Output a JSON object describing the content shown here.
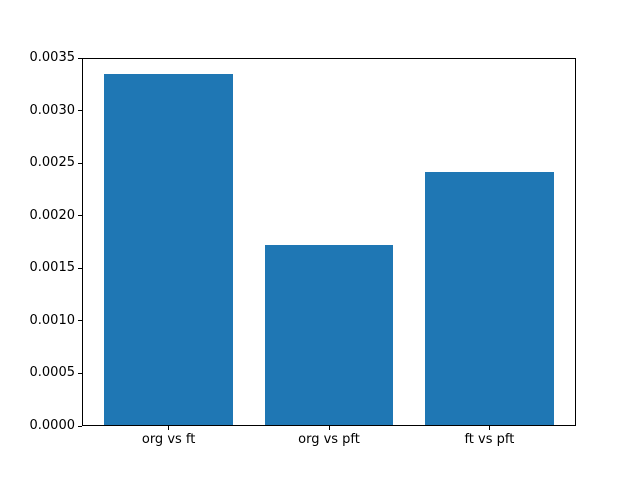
{
  "chart_data": {
    "type": "bar",
    "title": "",
    "xlabel": "",
    "ylabel": "",
    "categories": [
      "org vs ft",
      "org vs pft",
      "ft vs pft"
    ],
    "values": [
      0.00335,
      0.00172,
      0.00242
    ],
    "ylim": [
      0,
      0.0035
    ],
    "ytick_labels": [
      "0.0000",
      "0.0005",
      "0.0010",
      "0.0015",
      "0.0020",
      "0.0025",
      "0.0030",
      "0.0035"
    ],
    "bar_color": "#1f77b4",
    "axis_color": "#000000",
    "background_color": "#ffffff",
    "grid": "off",
    "legend": "none",
    "bar_width_fraction": 0.8
  }
}
